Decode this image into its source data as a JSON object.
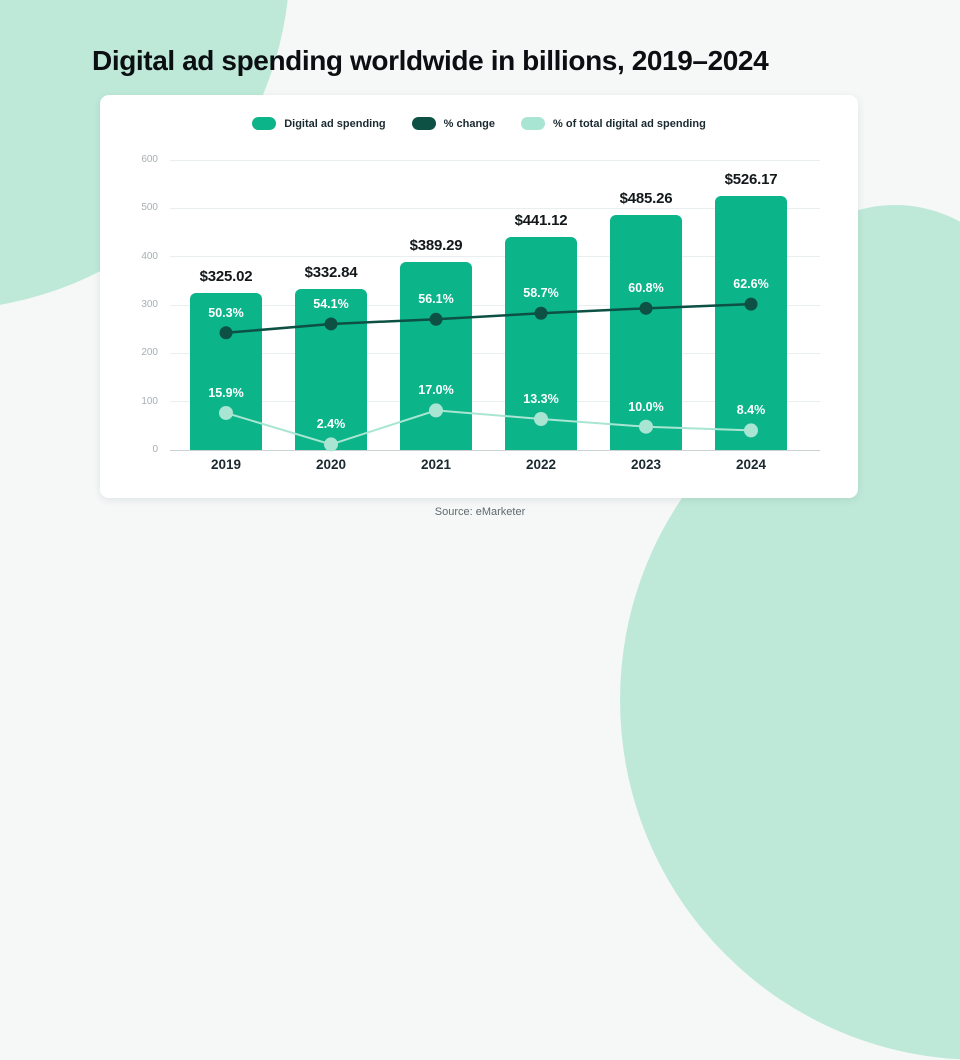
{
  "page": {
    "title": "Digital ad spending worldwide in billions, 2019–2024",
    "source": "Source: eMarketer"
  },
  "legend": {
    "items": [
      {
        "label": "Digital ad spending",
        "color": "#0cb48a"
      },
      {
        "label": "% change",
        "color": "#0d5044"
      },
      {
        "label": "% of total digital ad spending",
        "color": "#a8e5d2"
      }
    ]
  },
  "chart_data": {
    "type": "bar",
    "title": "Digital ad spending worldwide in billions, 2019–2024",
    "categories": [
      "2019",
      "2020",
      "2021",
      "2022",
      "2023",
      "2024"
    ],
    "series": [
      {
        "name": "Digital ad spending",
        "type": "bar",
        "color": "#0cb48a",
        "values": [
          325.02,
          332.84,
          389.29,
          441.12,
          485.26,
          526.17
        ],
        "labels": [
          "$325.02",
          "$332.84",
          "$389.29",
          "$441.12",
          "$485.26",
          "$526.17"
        ]
      },
      {
        "name": "% change",
        "type": "line",
        "color": "#0d5044",
        "values": [
          50.3,
          54.1,
          56.1,
          58.7,
          60.8,
          62.6
        ],
        "labels": [
          "50.3%",
          "54.1%",
          "56.1%",
          "58.7%",
          "60.8%",
          "62.6%"
        ]
      },
      {
        "name": "% of total digital ad spending",
        "type": "line",
        "color": "#a8e5d2",
        "values": [
          15.9,
          2.4,
          17.0,
          13.3,
          10.0,
          8.4
        ],
        "labels": [
          "15.9%",
          "2.4%",
          "17.0%",
          "13.3%",
          "10.0%",
          "8.4%"
        ]
      }
    ],
    "yticks": [
      0,
      100,
      200,
      300,
      400,
      500,
      600
    ],
    "ylim": [
      0,
      600
    ],
    "grid": true,
    "legend_position": "top",
    "xlabel": "",
    "ylabel": ""
  },
  "colors": {
    "background": "#f6f8f8",
    "decor_blob": "#bee9d9",
    "card": "#ffffff",
    "bar": "#0cb48a",
    "pct_change_line": "#0d5044",
    "pct_total_line": "#a8e5d2",
    "gridline": "#e9eeee",
    "baseline": "#ccd2d4",
    "y_tick_text": "#a8afb3",
    "x_label_text": "#1b2a31",
    "value_label_text": "#13181b",
    "title_text": "#0b0f12",
    "source_text": "#5f696d"
  }
}
